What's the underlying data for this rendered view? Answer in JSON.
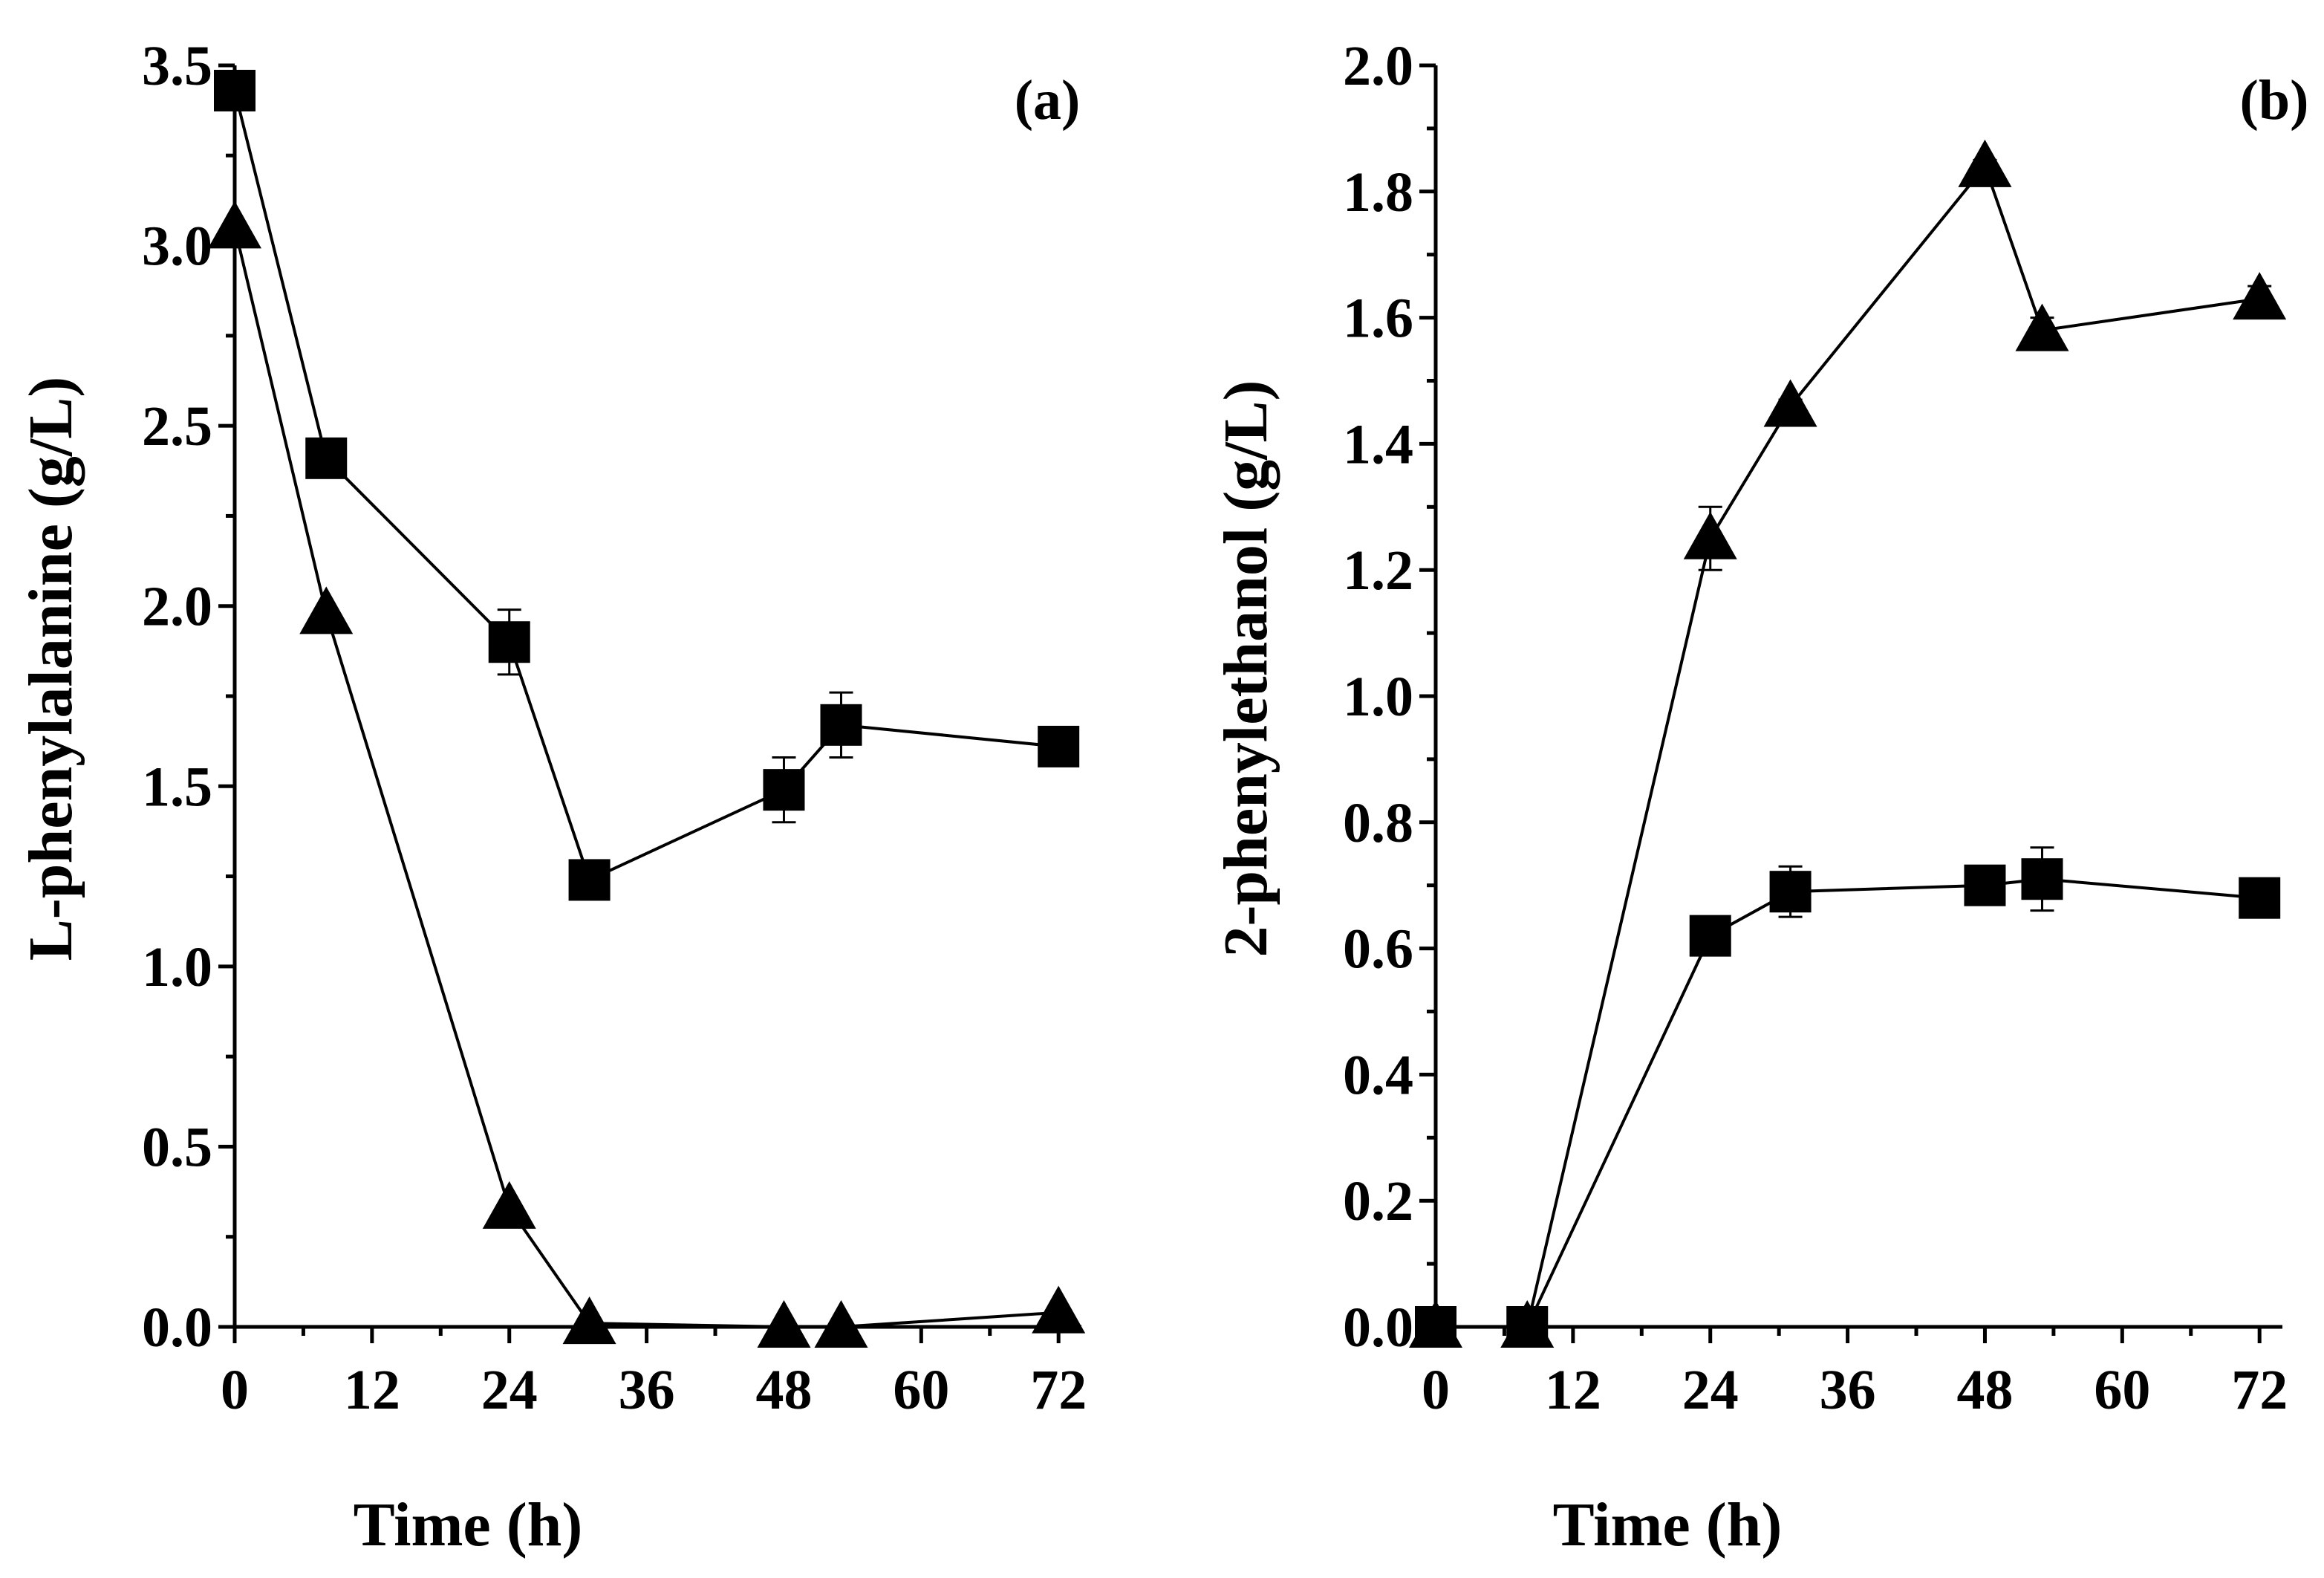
{
  "chart_data": [
    {
      "type": "line",
      "panel_label": "(a)",
      "xlabel": "Time (h)",
      "ylabel": "L-phenylalanine (g/L)",
      "xlim": [
        0,
        74
      ],
      "ylim": [
        0,
        3.5
      ],
      "xticks": [
        0,
        12,
        24,
        36,
        48,
        60,
        72
      ],
      "xtick_labels": [
        "0",
        "12",
        "24",
        "36",
        "48",
        "60",
        "72"
      ],
      "yticks": [
        0,
        0.5,
        1.0,
        1.5,
        2.0,
        2.5,
        3.0,
        3.5
      ],
      "ytick_labels": [
        "0.0",
        "0.5",
        "1.0",
        "1.5",
        "2.0",
        "2.5",
        "3.0",
        "3.5"
      ],
      "series": [
        {
          "name": "square",
          "marker": "square",
          "x": [
            0,
            8,
            24,
            31,
            48,
            53,
            72
          ],
          "y": [
            3.43,
            2.41,
            1.9,
            1.24,
            1.49,
            1.67,
            1.61
          ],
          "err": [
            0.02,
            0.02,
            0.09,
            0.02,
            0.09,
            0.09,
            0.02
          ]
        },
        {
          "name": "triangle",
          "marker": "triangle",
          "x": [
            0,
            8,
            24,
            31,
            48,
            53,
            72
          ],
          "y": [
            3.05,
            1.98,
            0.33,
            0.01,
            0.0,
            0.0,
            0.04
          ],
          "err": [
            0,
            0,
            0,
            0,
            0,
            0,
            0
          ]
        }
      ]
    },
    {
      "type": "line",
      "panel_label": "(b)",
      "xlabel": "Time (h)",
      "ylabel": "2-phenylethanol (g/L)",
      "xlim": [
        0,
        74
      ],
      "ylim": [
        0,
        2.0
      ],
      "xticks": [
        0,
        12,
        24,
        36,
        48,
        60,
        72
      ],
      "xtick_labels": [
        "0",
        "12",
        "24",
        "36",
        "48",
        "60",
        "72"
      ],
      "yticks": [
        0,
        0.2,
        0.4,
        0.6,
        0.8,
        1.0,
        1.2,
        1.4,
        1.6,
        1.8,
        2.0
      ],
      "ytick_labels": [
        "0.0",
        "0.2",
        "0.4",
        "0.6",
        "0.8",
        "1.0",
        "1.2",
        "1.4",
        "1.6",
        "1.8",
        "2.0"
      ],
      "series": [
        {
          "name": "square",
          "marker": "square",
          "x": [
            0,
            8,
            24,
            31,
            48,
            53,
            72
          ],
          "y": [
            0.0,
            0.0,
            0.62,
            0.69,
            0.7,
            0.71,
            0.68
          ],
          "err": [
            0,
            0,
            0.01,
            0.04,
            0.01,
            0.05,
            0.01
          ]
        },
        {
          "name": "triangle",
          "marker": "triangle",
          "x": [
            0,
            8,
            24,
            31,
            48,
            53,
            72
          ],
          "y": [
            0.0,
            0.0,
            1.25,
            1.46,
            1.84,
            1.58,
            1.63
          ],
          "err": [
            0,
            0,
            0.05,
            0.01,
            0.01,
            0.02,
            0.02
          ]
        }
      ]
    }
  ]
}
